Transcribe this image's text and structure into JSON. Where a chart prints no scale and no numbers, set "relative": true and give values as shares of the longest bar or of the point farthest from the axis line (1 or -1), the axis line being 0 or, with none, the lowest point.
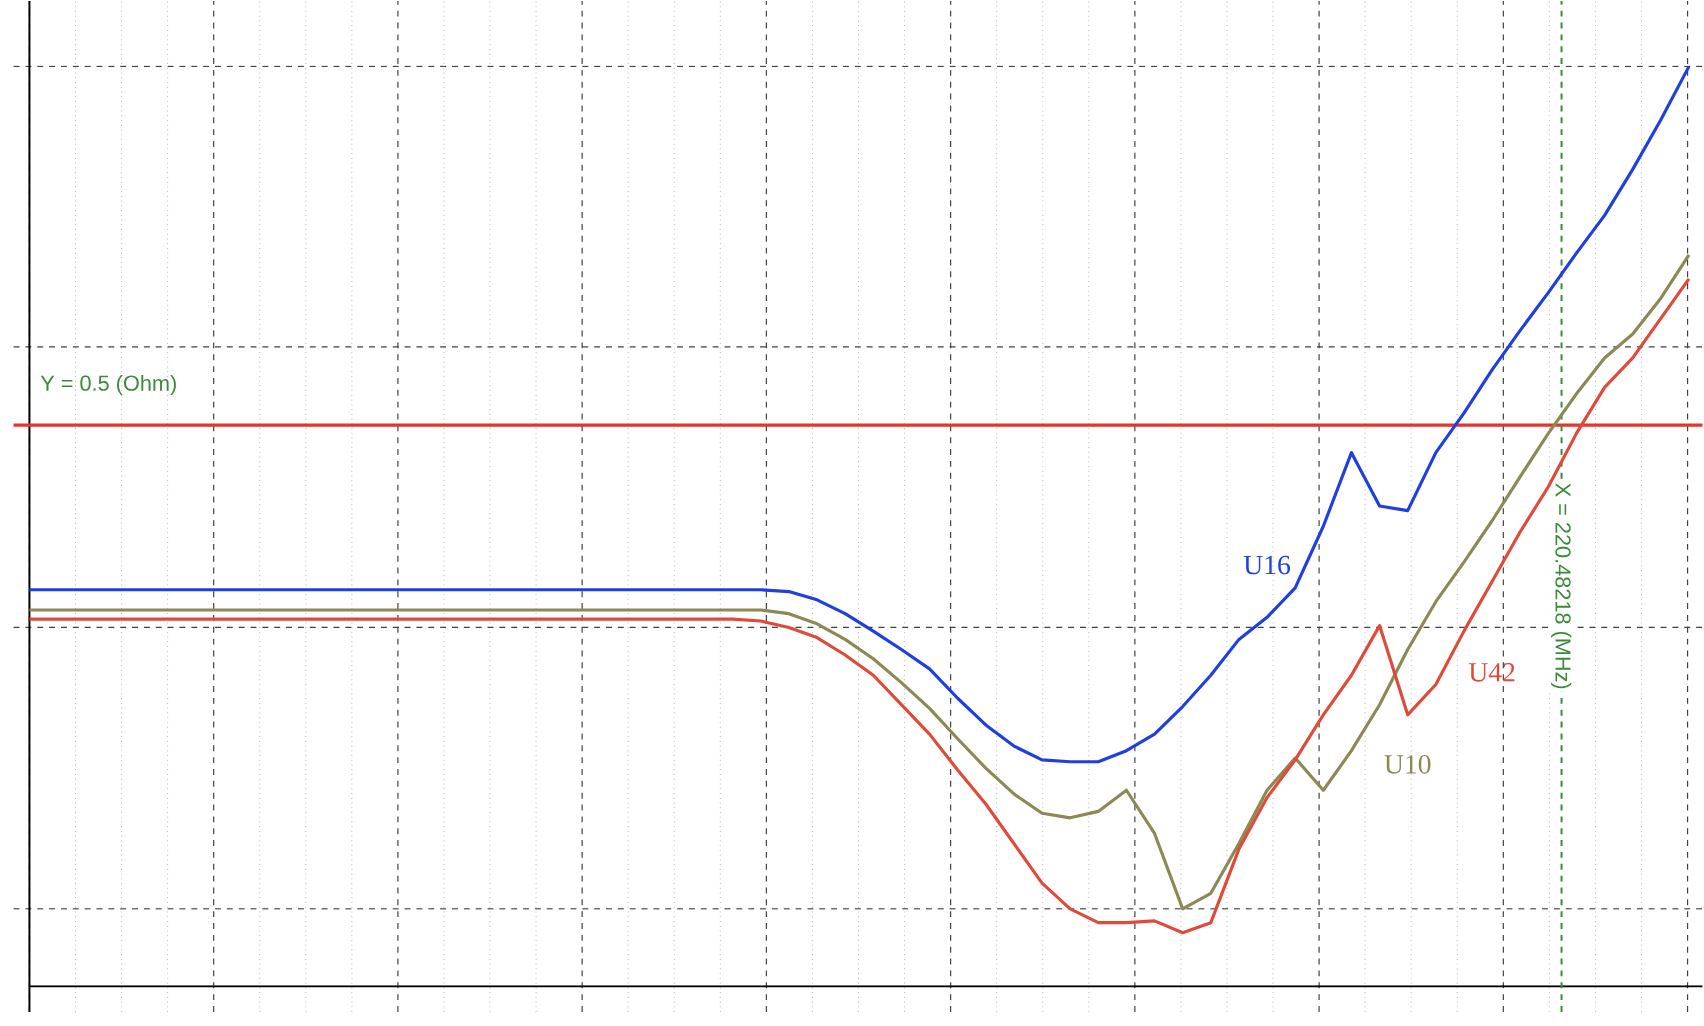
{
  "chart_data": {
    "type": "line",
    "relative": true,
    "grid": true,
    "marker": "none",
    "line_style": "solid",
    "categories": [
      null,
      null,
      null,
      null,
      null,
      null,
      null,
      null,
      null,
      null,
      null,
      null,
      null,
      null,
      null,
      null,
      null,
      null,
      null,
      null,
      null,
      null,
      null,
      null,
      null,
      null,
      null,
      null,
      null,
      null,
      null,
      null,
      null,
      null,
      null,
      null,
      null,
      null,
      null,
      null,
      null,
      null,
      null,
      null,
      null,
      null,
      null,
      null,
      null,
      null,
      null,
      null,
      null,
      null,
      null,
      null,
      null,
      null,
      null,
      null
    ],
    "series": [
      {
        "name": "U16",
        "color": "#1f3fe0",
        "values": [
          0.431,
          0.431,
          0.431,
          0.431,
          0.431,
          0.431,
          0.431,
          0.431,
          0.431,
          0.431,
          0.431,
          0.431,
          0.431,
          0.431,
          0.431,
          0.431,
          0.431,
          0.431,
          0.431,
          0.431,
          0.431,
          0.431,
          0.431,
          0.431,
          0.431,
          0.431,
          0.431,
          0.429,
          0.42,
          0.405,
          0.386,
          0.366,
          0.345,
          0.313,
          0.284,
          0.261,
          0.246,
          0.244,
          0.244,
          0.256,
          0.274,
          0.304,
          0.338,
          0.377,
          0.401,
          0.433,
          0.5,
          0.58,
          0.522,
          0.517,
          0.58,
          0.623,
          0.67,
          0.713,
          0.754,
          0.797,
          0.838,
          0.888,
          0.942,
          1.0
        ]
      },
      {
        "name": "U10",
        "color": "#8b8a55",
        "values": [
          0.409,
          0.409,
          0.409,
          0.409,
          0.409,
          0.409,
          0.409,
          0.409,
          0.409,
          0.409,
          0.409,
          0.409,
          0.409,
          0.409,
          0.409,
          0.409,
          0.409,
          0.409,
          0.409,
          0.409,
          0.409,
          0.409,
          0.409,
          0.409,
          0.409,
          0.409,
          0.409,
          0.405,
          0.394,
          0.377,
          0.356,
          0.33,
          0.302,
          0.269,
          0.237,
          0.209,
          0.188,
          0.183,
          0.19,
          0.213,
          0.166,
          0.084,
          0.101,
          0.155,
          0.213,
          0.248,
          0.213,
          0.256,
          0.306,
          0.366,
          0.418,
          0.461,
          0.506,
          0.554,
          0.601,
          0.644,
          0.683,
          0.709,
          0.748,
          0.795
        ]
      },
      {
        "name": "U42",
        "color": "#e04a3a",
        "values": [
          0.399,
          0.399,
          0.399,
          0.399,
          0.399,
          0.399,
          0.399,
          0.399,
          0.399,
          0.399,
          0.399,
          0.399,
          0.399,
          0.399,
          0.399,
          0.399,
          0.399,
          0.399,
          0.399,
          0.399,
          0.399,
          0.399,
          0.399,
          0.399,
          0.399,
          0.399,
          0.397,
          0.39,
          0.379,
          0.36,
          0.338,
          0.306,
          0.274,
          0.235,
          0.198,
          0.155,
          0.112,
          0.084,
          0.069,
          0.069,
          0.071,
          0.058,
          0.069,
          0.149,
          0.205,
          0.246,
          0.295,
          0.338,
          0.392,
          0.295,
          0.328,
          0.386,
          0.44,
          0.494,
          0.543,
          0.601,
          0.651,
          0.683,
          0.726,
          0.769
        ]
      }
    ],
    "ref_lines": [
      {
        "axis": "y",
        "value": 0.61,
        "color": "#e8322a",
        "line_style": "solid"
      }
    ],
    "annotations": [
      "Y = 0.5 (Ohm)",
      "X = 220.48218 (MHz)"
    ]
  }
}
